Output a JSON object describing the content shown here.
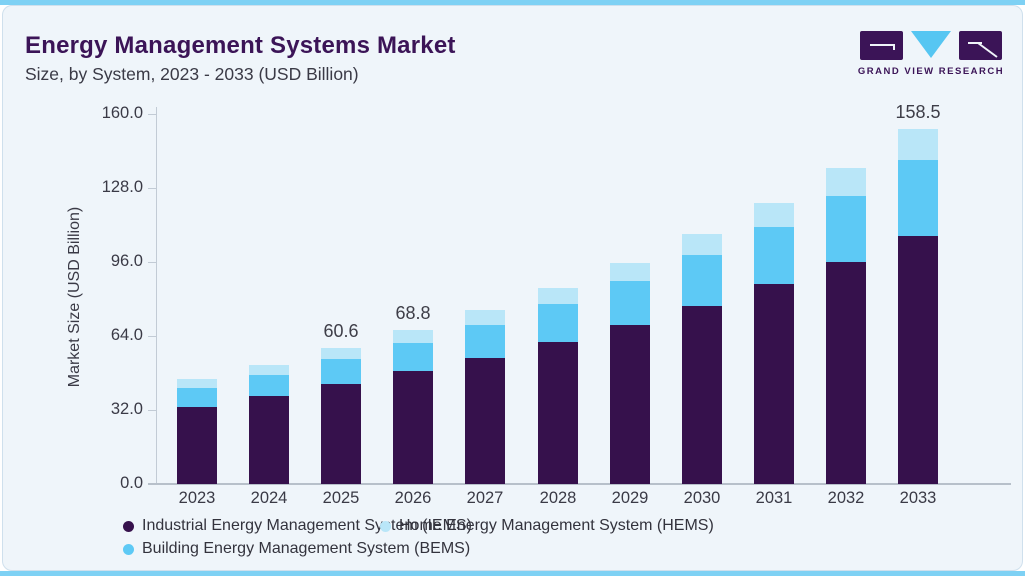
{
  "header": {
    "title": "Energy Management Systems Market",
    "subtitle": "Size, by System, 2023 - 2033 (USD Billion)"
  },
  "logo": {
    "brand": "GRAND VIEW RESEARCH",
    "icon": "gvr-logo-icon",
    "purple": "#3b1457",
    "blue": "#56c6f2"
  },
  "colors": {
    "accent_strip": "#7ed1f4",
    "card_background": "#eff5fa",
    "iems_purple": "#36114c",
    "bems_blue": "#5dc9f5",
    "hems_light_blue": "#b9e6f8"
  },
  "chart_data": {
    "type": "bar",
    "stacked": true,
    "title": "Energy Management Systems Market",
    "subtitle": "Size, by System, 2023 - 2033 (USD Billion)",
    "xlabel": "",
    "ylabel": "Market Size (USD Billion)",
    "ylim": [
      0,
      160
    ],
    "yticks": [
      0,
      32,
      64,
      96,
      128,
      160
    ],
    "ytick_labels": [
      "0.0",
      "32.0",
      "64.0",
      "96.0",
      "128.0",
      "160.0"
    ],
    "grid": false,
    "legend_position": "bottom",
    "categories": [
      "2023",
      "2024",
      "2025",
      "2026",
      "2027",
      "2028",
      "2029",
      "2030",
      "2031",
      "2032",
      "2033"
    ],
    "series": [
      {
        "name": "Industrial Energy Management System (IEMS)",
        "color": "#36114c",
        "values": [
          34.4,
          39.4,
          44.8,
          50.5,
          56.4,
          63.2,
          71.0,
          79.6,
          89.3,
          99.1,
          110.7
        ]
      },
      {
        "name": "Building Energy Management System (BEMS)",
        "color": "#5dc9f5",
        "values": [
          8.4,
          9.4,
          10.9,
          12.6,
          14.8,
          17.2,
          19.5,
          22.8,
          25.4,
          29.3,
          33.9
        ]
      },
      {
        "name": "Home Energy Management System (HEMS)",
        "color": "#b9e6f8",
        "values": [
          4.0,
          4.4,
          4.9,
          5.7,
          6.4,
          7.2,
          8.3,
          9.0,
          10.8,
          12.5,
          13.9
        ]
      }
    ],
    "totals": [
      46.8,
      53.2,
      60.6,
      68.8,
      77.6,
      87.6,
      98.8,
      111.4,
      125.5,
      140.9,
      158.5
    ],
    "data_labels": [
      {
        "category": "2025",
        "index": 2,
        "text": "60.6"
      },
      {
        "category": "2026",
        "index": 3,
        "text": "68.8"
      },
      {
        "category": "2033",
        "index": 10,
        "text": "158.5"
      }
    ]
  },
  "legend": {
    "items": [
      {
        "label": "Industrial Energy Management System (IEMS)",
        "color": "#36114c",
        "marker": "circle"
      },
      {
        "label": "Home Energy Management System (HEMS)",
        "color": "#b9e6f8",
        "marker": "circle"
      },
      {
        "label": "Building Energy Management System (BEMS)",
        "color": "#5dc9f5",
        "marker": "circle"
      }
    ]
  }
}
